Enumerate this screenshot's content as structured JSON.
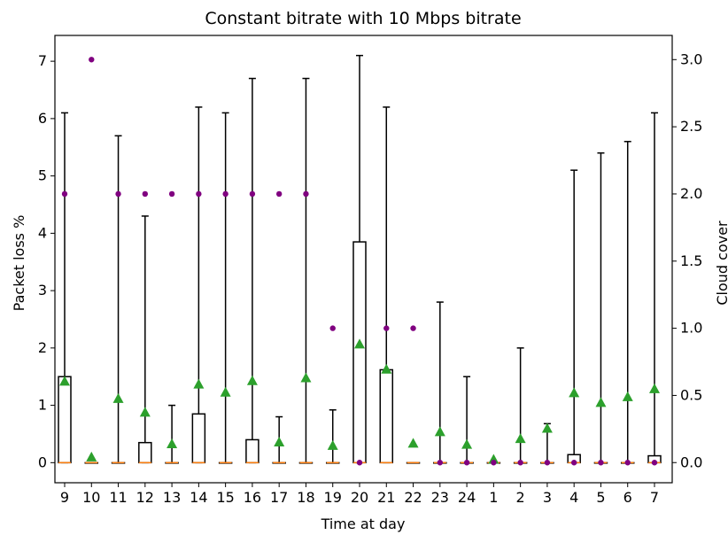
{
  "chart_data": {
    "type": "box",
    "title": "Constant bitrate with 10 Mbps bitrate",
    "xlabel": "Time at day",
    "ylabel": "Packet loss %",
    "y2label": "Cloud cover",
    "categories": [
      "9",
      "10",
      "11",
      "12",
      "13",
      "14",
      "15",
      "16",
      "17",
      "18",
      "19",
      "20",
      "21",
      "22",
      "23",
      "24",
      "1",
      "2",
      "3",
      "4",
      "5",
      "6",
      "7"
    ],
    "ylim": [
      -0.35,
      7.45
    ],
    "y2lim": [
      -0.15,
      3.18
    ],
    "yticks": [
      0,
      1,
      2,
      3,
      4,
      5,
      6,
      7
    ],
    "y2ticks": [
      0.0,
      0.5,
      1.0,
      1.5,
      2.0,
      2.5,
      3.0
    ],
    "colors": {
      "box": "#000000",
      "median": "#ff7f0e",
      "mean": "#2ca02c",
      "cloud": "#800080"
    },
    "series": [
      {
        "name": "Packet loss %",
        "kind": "box",
        "q1": [
          0,
          0,
          0,
          0,
          0,
          0,
          0,
          0,
          0,
          0,
          0,
          0,
          0,
          0,
          0,
          0,
          0,
          0,
          0,
          0,
          0,
          0,
          0
        ],
        "median": [
          0,
          0,
          0,
          0,
          0,
          0,
          0,
          0,
          0,
          0,
          0,
          0,
          0,
          0,
          0,
          0,
          0,
          0,
          0,
          0,
          0,
          0,
          0
        ],
        "q3": [
          1.5,
          0,
          0,
          0.35,
          0,
          0.85,
          0,
          0.4,
          0,
          0,
          0,
          3.85,
          1.62,
          0,
          0,
          0,
          0,
          0,
          0,
          0.14,
          0,
          0,
          0.12
        ],
        "whislo": [
          0,
          0,
          0,
          0,
          0,
          0,
          0,
          0,
          0,
          0,
          0,
          0,
          0,
          0,
          0,
          0,
          0,
          0,
          0,
          0,
          0,
          0,
          0
        ],
        "whishi": [
          6.1,
          0,
          5.7,
          4.3,
          1.0,
          6.2,
          6.1,
          6.7,
          0.8,
          6.7,
          0.92,
          7.1,
          6.2,
          0,
          2.8,
          1.5,
          0,
          2.0,
          0.68,
          5.1,
          5.4,
          5.6,
          6.1
        ],
        "mean": [
          1.42,
          0.1,
          1.12,
          0.88,
          0.33,
          1.37,
          1.23,
          1.43,
          0.36,
          1.48,
          0.3,
          2.07,
          1.63,
          0.34,
          0.54,
          0.32,
          0.06,
          0.42,
          0.6,
          1.22,
          1.05,
          1.15,
          1.29
        ]
      },
      {
        "name": "Cloud cover",
        "kind": "scatter",
        "axis": "y2",
        "values": [
          2.0,
          3.0,
          2.0,
          2.0,
          2.0,
          2.0,
          2.0,
          2.0,
          2.0,
          2.0,
          1.0,
          0.0,
          1.0,
          1.0,
          0.0,
          0.0,
          0.0,
          0.0,
          0.0,
          0.0,
          0.0,
          0.0,
          0.0
        ]
      }
    ]
  }
}
